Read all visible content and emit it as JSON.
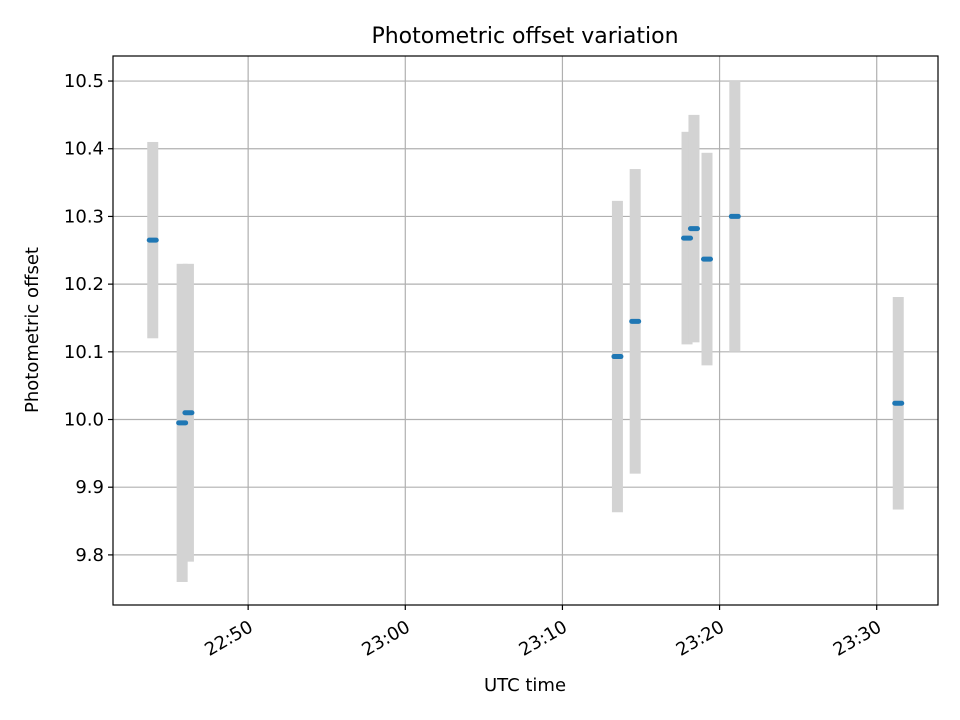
{
  "chart_data": {
    "type": "scatter",
    "title": "Photometric offset variation",
    "xlabel": "UTC time",
    "ylabel": "Photometric offset",
    "x_tick_labels": [
      "22:50",
      "23:00",
      "23:10",
      "23:20",
      "23:30"
    ],
    "x_tick_minutes": [
      -10,
      0,
      10,
      20,
      30
    ],
    "y_tick_labels": [
      "9.8",
      "9.9",
      "10.0",
      "10.1",
      "10.2",
      "10.3",
      "10.4",
      "10.5"
    ],
    "y_ticks": [
      9.8,
      9.9,
      10.0,
      10.1,
      10.2,
      10.3,
      10.4,
      10.5
    ],
    "xlim_minutes": [
      -18.6,
      33.9
    ],
    "ylim": [
      9.726,
      10.537
    ],
    "grid": true,
    "marker_color": "#1f77b4",
    "errorbar_color": "#d3d3d3",
    "series": [
      {
        "points": [
          {
            "t_minutes": -16.07,
            "t_label": "22:43:56",
            "y": 10.265,
            "err": 0.145
          },
          {
            "t_minutes": -14.2,
            "t_label": "22:45:48",
            "y": 9.995,
            "err": 0.235
          },
          {
            "t_minutes": -13.8,
            "t_label": "22:46:12",
            "y": 10.01,
            "err": 0.22
          },
          {
            "t_minutes": 13.5,
            "t_label": "23:13:30",
            "y": 10.093,
            "err": 0.23
          },
          {
            "t_minutes": 14.63,
            "t_label": "23:14:38",
            "y": 10.145,
            "err": 0.225
          },
          {
            "t_minutes": 17.93,
            "t_label": "23:17:56",
            "y": 10.268,
            "err": 0.157
          },
          {
            "t_minutes": 18.37,
            "t_label": "23:18:22",
            "y": 10.282,
            "err": 0.168
          },
          {
            "t_minutes": 19.2,
            "t_label": "23:19:12",
            "y": 10.237,
            "err": 0.157
          },
          {
            "t_minutes": 20.97,
            "t_label": "23:20:58",
            "y": 10.3,
            "err": 0.2
          },
          {
            "t_minutes": 31.37,
            "t_label": "23:31:22",
            "y": 10.024,
            "err": 0.157
          }
        ]
      }
    ]
  }
}
